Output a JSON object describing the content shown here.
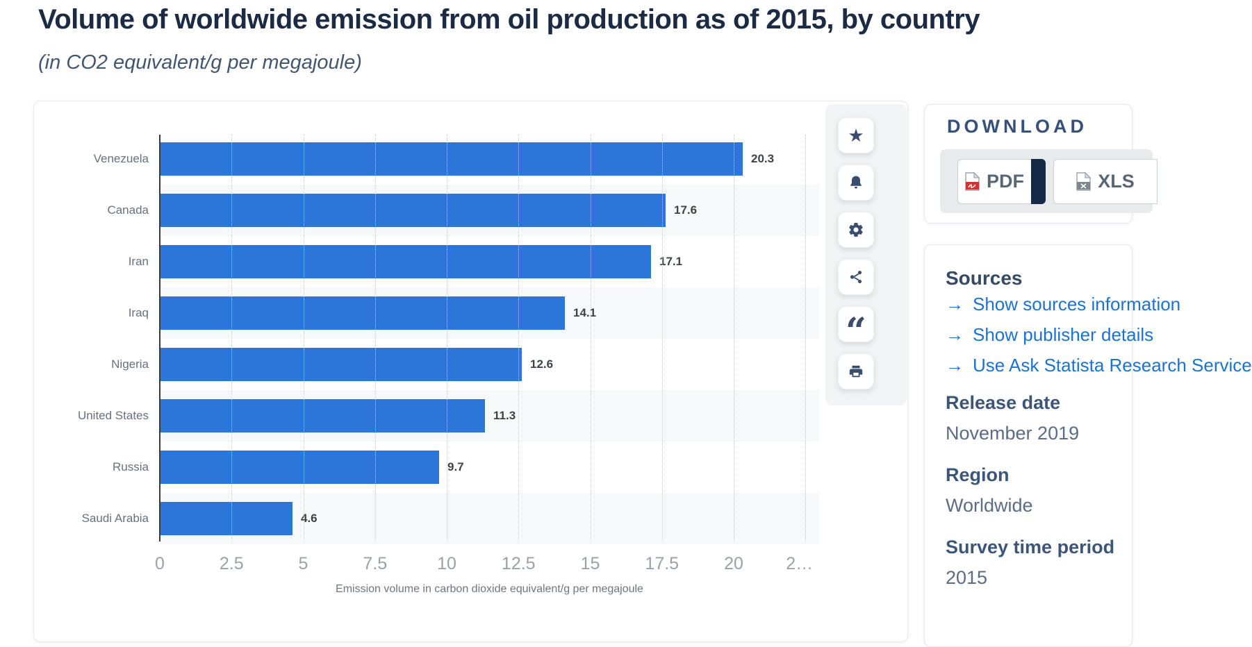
{
  "page": {
    "title": "Volume of worldwide emission from oil production as of 2015, by country",
    "subtitle": "(in CO2 equivalent/g per megajoule)"
  },
  "chart_data": {
    "type": "bar",
    "orientation": "horizontal",
    "categories": [
      "Venezuela",
      "Canada",
      "Iran",
      "Iraq",
      "Nigeria",
      "United States",
      "Russia",
      "Saudi Arabia"
    ],
    "values": [
      20.3,
      17.6,
      17.1,
      14.1,
      12.6,
      11.3,
      9.7,
      4.6
    ],
    "title": "Volume of worldwide emission from oil production as of 2015, by country",
    "xlabel": "Emission volume in carbon dioxide equivalent/g per megajoule",
    "ylabel": "",
    "xlim": [
      0,
      22.5
    ],
    "x_ticks": [
      "0",
      "2.5",
      "5",
      "7.5",
      "10",
      "12.5",
      "15",
      "17.5",
      "20",
      "2…"
    ],
    "x_tick_values": [
      0,
      2.5,
      5,
      7.5,
      10,
      12.5,
      15,
      17.5,
      20,
      22.5
    ],
    "grid": "dotted-vertical",
    "legend": "none",
    "bar_color": "#2c76da"
  },
  "toolbar": {
    "icons": [
      "favorite-star",
      "alert-bell",
      "settings-gear",
      "share-nodes",
      "citation-quote",
      "printer"
    ]
  },
  "download": {
    "heading": "DOWNLOAD",
    "pdf_label": "PDF",
    "xls_label": "XLS"
  },
  "sources": {
    "heading": "Sources",
    "links": [
      "Show sources information",
      "Show publisher details",
      "Use Ask Statista Research Service"
    ]
  },
  "details": [
    {
      "label": "Release date",
      "value": "November 2019"
    },
    {
      "label": "Region",
      "value": "Worldwide"
    },
    {
      "label": "Survey time period",
      "value": "2015"
    }
  ],
  "colors": {
    "bar": "#2c76da",
    "link": "#1b72d3",
    "title": "#1b2b43",
    "heading": "#344a63",
    "icon": "#3b4d6e",
    "pdf_red": "#cf3535",
    "plus_navy": "#142a47"
  }
}
